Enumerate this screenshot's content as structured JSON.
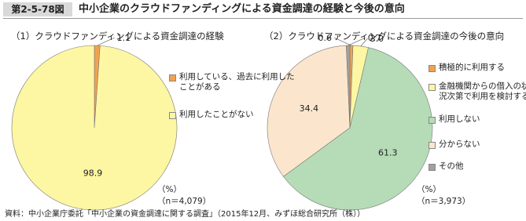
{
  "header": {
    "figure_label": "第2-5-78図",
    "title": "中小企業のクラウドファンディングによる資金調達の経験と今後の意向"
  },
  "source": "資料：中小企業庁委託「中小企業の資金調達に関する調査」（2015年12月、みずほ総合研究所（株））",
  "chart_data": [
    {
      "type": "pie",
      "title": "（1）クラウドファンディングによる資金調達の経験",
      "categories": [
        "利用している、過去に利用したことがある",
        "利用したことがない"
      ],
      "values": [
        1.1,
        98.9
      ],
      "colors": [
        "#f2a24e",
        "#fdf6a3"
      ],
      "unit_note": "（%）",
      "sample_note": "（n＝4,079）"
    },
    {
      "type": "pie",
      "title": "（2）クラウドファンディングによる資金調達の今後の意向",
      "categories": [
        "積極的に利用する",
        "金融機関からの借入の状況次第で利用を検討する",
        "利用しない",
        "分からない",
        "その他"
      ],
      "values": [
        0.6,
        3,
        61.3,
        34.4,
        0.7
      ],
      "value_labels": [
        "0.6",
        "3.0",
        "61.3",
        "34.4",
        "0.7"
      ],
      "colors": [
        "#f2a24e",
        "#fdf6a3",
        "#b5dcb6",
        "#fbe6cd",
        "#a0a0a0"
      ],
      "unit_note": "（%）",
      "sample_note": "（n＝3,973）"
    }
  ]
}
